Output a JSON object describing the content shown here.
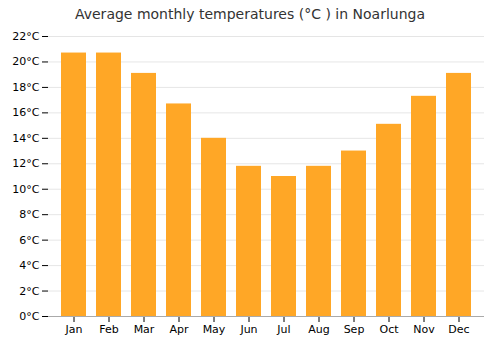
{
  "chart_data": {
    "type": "bar",
    "title": "Average monthly temperatures (°C ) in Noarlunga",
    "categories": [
      "Jan",
      "Feb",
      "Mar",
      "Apr",
      "May",
      "Jun",
      "Jul",
      "Aug",
      "Sep",
      "Oct",
      "Nov",
      "Dec"
    ],
    "values": [
      20.7,
      20.7,
      19.1,
      16.7,
      14.0,
      11.8,
      11.0,
      11.8,
      13.0,
      15.1,
      17.3,
      19.1
    ],
    "color": "#FFA726",
    "ylim": [
      0,
      22
    ],
    "yticks": [
      {
        "value": 0,
        "label": "0°C"
      },
      {
        "value": 2,
        "label": "2°C"
      },
      {
        "value": 4,
        "label": "4°C"
      },
      {
        "value": 6,
        "label": "6°C"
      },
      {
        "value": 8,
        "label": "8°C"
      },
      {
        "value": 10,
        "label": "10°C"
      },
      {
        "value": 12,
        "label": "12°C"
      },
      {
        "value": 14,
        "label": "14°C"
      },
      {
        "value": 16,
        "label": "16°C"
      },
      {
        "value": 18,
        "label": "18°C"
      },
      {
        "value": 20,
        "label": "20°C"
      },
      {
        "value": 22,
        "label": "22°C"
      }
    ],
    "grid": true
  }
}
